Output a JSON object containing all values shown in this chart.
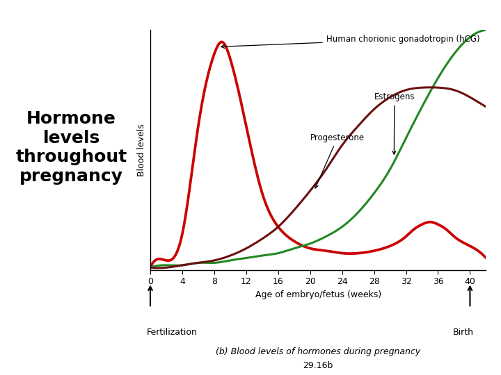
{
  "title_left": "Hormone\nlevels\nthroughout\npregnancy",
  "left_panel_color": "#c8e8f0",
  "plot_bg_color": "#ffffff",
  "ylabel": "Blood levels",
  "xlabel": "Age of embryo/fetus (weeks)",
  "xticks": [
    0,
    4,
    8,
    12,
    16,
    20,
    24,
    28,
    32,
    36,
    40
  ],
  "xlim": [
    0,
    42
  ],
  "ylim": [
    0,
    1.0
  ],
  "caption": "(b) Blood levels of hormones during pregnancy",
  "caption2": "29.16b",
  "fertilization_label": "Fertilization",
  "birth_label": "Birth",
  "hcg_label": "Human chorionic gonadotropin (hCG)",
  "estrogens_label": "Estrogens",
  "progesterone_label": "Progesterone",
  "hcg_color": "#cc0000",
  "estrogens_color": "#228822",
  "progesterone_color": "#6b1010",
  "line_width": 2.2,
  "hcg_x": [
    0,
    2,
    4,
    6,
    8,
    9,
    10,
    12,
    14,
    16,
    18,
    20,
    22,
    24,
    26,
    28,
    30,
    32,
    33,
    34,
    35,
    36,
    37,
    38,
    40,
    42
  ],
  "hcg_y": [
    0.01,
    0.04,
    0.15,
    0.6,
    0.9,
    0.95,
    0.88,
    0.6,
    0.32,
    0.18,
    0.12,
    0.09,
    0.08,
    0.07,
    0.07,
    0.08,
    0.1,
    0.14,
    0.17,
    0.19,
    0.2,
    0.19,
    0.17,
    0.14,
    0.1,
    0.05
  ],
  "estrogens_x": [
    0,
    2,
    4,
    6,
    8,
    10,
    12,
    14,
    16,
    18,
    20,
    22,
    24,
    26,
    28,
    30,
    32,
    34,
    36,
    38,
    40,
    42
  ],
  "estrogens_y": [
    0.01,
    0.02,
    0.02,
    0.03,
    0.03,
    0.04,
    0.05,
    0.06,
    0.07,
    0.09,
    0.11,
    0.14,
    0.18,
    0.24,
    0.32,
    0.42,
    0.55,
    0.68,
    0.8,
    0.9,
    0.97,
    1.0
  ],
  "progesterone_x": [
    0,
    2,
    4,
    6,
    8,
    10,
    12,
    14,
    16,
    18,
    20,
    22,
    24,
    26,
    28,
    30,
    32,
    34,
    36,
    38,
    40,
    42
  ],
  "progesterone_y": [
    0.01,
    0.01,
    0.02,
    0.03,
    0.04,
    0.06,
    0.09,
    0.13,
    0.18,
    0.25,
    0.33,
    0.42,
    0.52,
    0.6,
    0.67,
    0.72,
    0.75,
    0.76,
    0.76,
    0.75,
    0.72,
    0.68
  ]
}
